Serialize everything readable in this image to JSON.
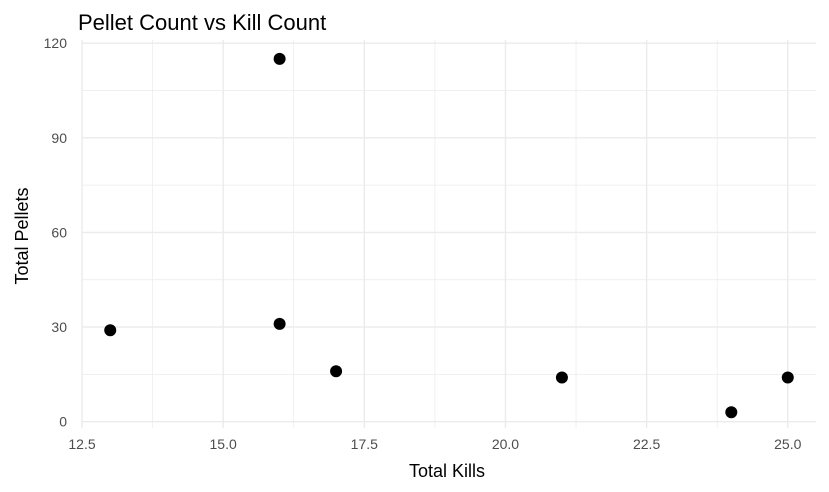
{
  "chart_data": {
    "type": "scatter",
    "title": "Pellet Count vs Kill Count",
    "xlabel": "Total Kills",
    "ylabel": "Total Pellets",
    "xlim": [
      12.5,
      25.5
    ],
    "ylim": [
      -2,
      121
    ],
    "x_ticks": [
      12.5,
      15.0,
      17.5,
      20.0,
      22.5,
      25.0
    ],
    "x_tick_labels": [
      "12.5",
      "15.0",
      "17.5",
      "20.0",
      "22.5",
      "25.0"
    ],
    "y_ticks": [
      0,
      30,
      60,
      90,
      120
    ],
    "y_tick_labels": [
      "0",
      "30",
      "60",
      "90",
      "120"
    ],
    "grid": true,
    "points": [
      {
        "x": 13,
        "y": 29
      },
      {
        "x": 16,
        "y": 115
      },
      {
        "x": 16,
        "y": 31
      },
      {
        "x": 17,
        "y": 16
      },
      {
        "x": 21,
        "y": 14
      },
      {
        "x": 24,
        "y": 3
      },
      {
        "x": 25,
        "y": 14
      }
    ],
    "colors": {
      "point": "#000000",
      "grid": "#ebebeb",
      "tick_text": "#4d4d4d"
    }
  }
}
